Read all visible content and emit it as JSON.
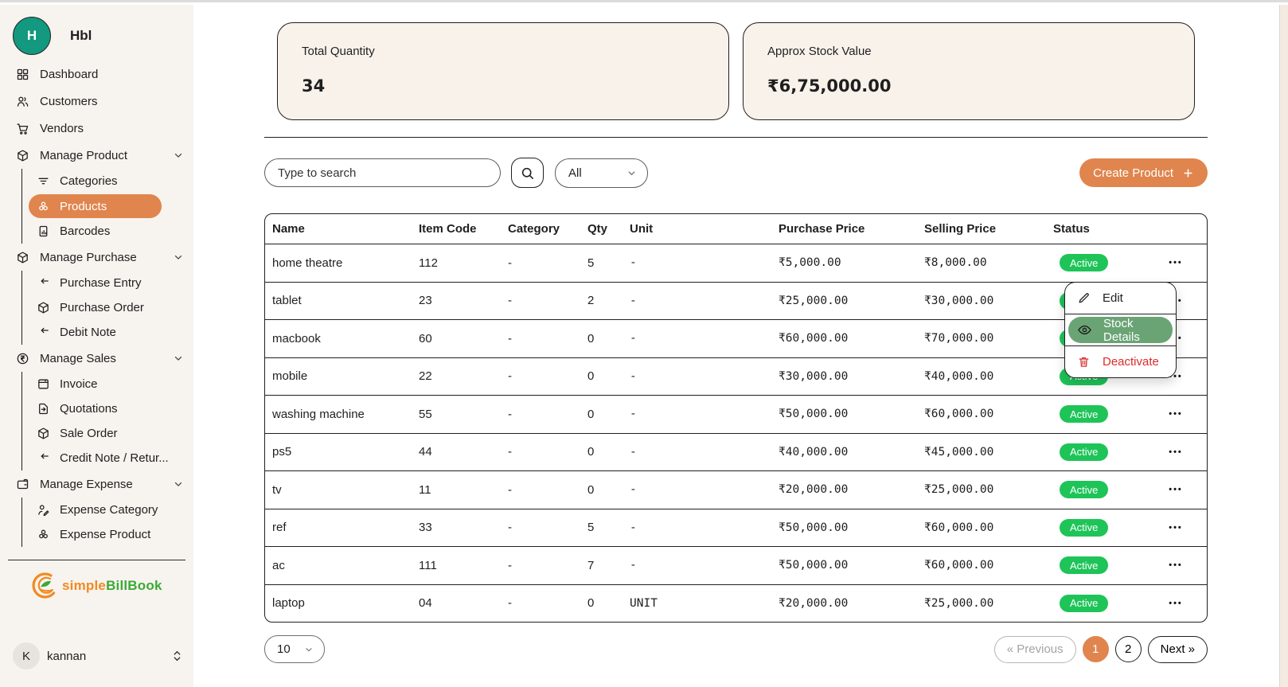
{
  "workspace": {
    "initial": "H",
    "name": "Hbl"
  },
  "brand": {
    "part1": "simple",
    "part2": "BillBook"
  },
  "user": {
    "initial": "K",
    "name": "kannan"
  },
  "sidebar": {
    "sections": [
      {
        "label": "Dashboard",
        "icon": "grid"
      },
      {
        "label": "Customers",
        "icon": "users"
      },
      {
        "label": "Vendors",
        "icon": "cart"
      },
      {
        "label": "Manage Product",
        "icon": "cube",
        "expandable": true,
        "children": [
          {
            "label": "Categories",
            "icon": "filter"
          },
          {
            "label": "Products",
            "icon": "berries",
            "active": true
          },
          {
            "label": "Barcodes",
            "icon": "doc-chart"
          }
        ]
      },
      {
        "label": "Manage Purchase",
        "icon": "cube",
        "expandable": true,
        "children": [
          {
            "label": "Purchase Entry",
            "icon": "arrow-return"
          },
          {
            "label": "Purchase Order",
            "icon": "cube"
          },
          {
            "label": "Debit Note",
            "icon": "arrow-return"
          }
        ]
      },
      {
        "label": "Manage Sales",
        "icon": "rupee-circle",
        "expandable": true,
        "children": [
          {
            "label": "Invoice",
            "icon": "invoice"
          },
          {
            "label": "Quotations",
            "icon": "doc-arrow"
          },
          {
            "label": "Sale Order",
            "icon": "cube"
          },
          {
            "label": "Credit Note / Retur...",
            "icon": "arrow-return"
          }
        ]
      },
      {
        "label": "Manage Expense",
        "icon": "wallet",
        "expandable": true,
        "children": [
          {
            "label": "Expense Category",
            "icon": "user-edit"
          },
          {
            "label": "Expense Product",
            "icon": "berries"
          }
        ]
      }
    ]
  },
  "stats": [
    {
      "label": "Total Quantity",
      "value": "34"
    },
    {
      "label": "Approx Stock Value",
      "value": "₹6,75,000.00"
    }
  ],
  "toolbar": {
    "search_placeholder": "Type to search",
    "filter_value": "All",
    "create_label": "Create Product",
    "create_plus": "+"
  },
  "table": {
    "columns": [
      "Name",
      "Item Code",
      "Category",
      "Qty",
      "Unit",
      "Purchase Price",
      "Selling Price",
      "Status",
      ""
    ],
    "rows": [
      {
        "name": "home theatre",
        "item_code": "112",
        "category": "-",
        "qty": "5",
        "unit": "-",
        "purchase_price": "₹5,000.00",
        "selling_price": "₹8,000.00",
        "status": "Active"
      },
      {
        "name": "tablet",
        "item_code": "23",
        "category": "-",
        "qty": "2",
        "unit": "-",
        "purchase_price": "₹25,000.00",
        "selling_price": "₹30,000.00",
        "status": "Active"
      },
      {
        "name": "macbook",
        "item_code": "60",
        "category": "-",
        "qty": "0",
        "unit": "-",
        "purchase_price": "₹60,000.00",
        "selling_price": "₹70,000.00",
        "status": "Active"
      },
      {
        "name": "mobile",
        "item_code": "22",
        "category": "-",
        "qty": "0",
        "unit": "-",
        "purchase_price": "₹30,000.00",
        "selling_price": "₹40,000.00",
        "status": "Active"
      },
      {
        "name": "washing machine",
        "item_code": "55",
        "category": "-",
        "qty": "0",
        "unit": "-",
        "purchase_price": "₹50,000.00",
        "selling_price": "₹60,000.00",
        "status": "Active"
      },
      {
        "name": "ps5",
        "item_code": "44",
        "category": "-",
        "qty": "0",
        "unit": "-",
        "purchase_price": "₹40,000.00",
        "selling_price": "₹45,000.00",
        "status": "Active"
      },
      {
        "name": "tv",
        "item_code": "11",
        "category": "-",
        "qty": "0",
        "unit": "-",
        "purchase_price": "₹20,000.00",
        "selling_price": "₹25,000.00",
        "status": "Active"
      },
      {
        "name": "ref",
        "item_code": "33",
        "category": "-",
        "qty": "5",
        "unit": "-",
        "purchase_price": "₹50,000.00",
        "selling_price": "₹60,000.00",
        "status": "Active"
      },
      {
        "name": "ac",
        "item_code": "111",
        "category": "-",
        "qty": "7",
        "unit": "-",
        "purchase_price": "₹50,000.00",
        "selling_price": "₹60,000.00",
        "status": "Active"
      },
      {
        "name": "laptop",
        "item_code": "04",
        "category": "-",
        "qty": "0",
        "unit": "UNIT",
        "purchase_price": "₹20,000.00",
        "selling_price": "₹25,000.00",
        "status": "Active"
      }
    ],
    "row_action_icon": "•••"
  },
  "context_menu": {
    "items": [
      {
        "label": "Edit",
        "icon": "pencil",
        "variant": "default"
      },
      {
        "label": "Stock Details",
        "icon": "eye",
        "variant": "active"
      },
      {
        "label": "Deactivate",
        "icon": "trash",
        "variant": "danger"
      }
    ]
  },
  "pagination": {
    "page_size": "10",
    "previous_label": "« Previous",
    "pages": [
      "1",
      "2"
    ],
    "active_page": "1",
    "next_label": "Next »"
  },
  "colors": {
    "accent_orange": "#e0854d",
    "badge_green": "#1ec458",
    "menu_highlight_green": "#6aa475",
    "danger_red": "#d92b2b",
    "avatar_teal": "#12997f",
    "logo_orange": "#f18a21",
    "logo_green": "#3aaa35",
    "card_bg": "#f8f2eb",
    "sidebar_bg": "#f7f3ee"
  }
}
